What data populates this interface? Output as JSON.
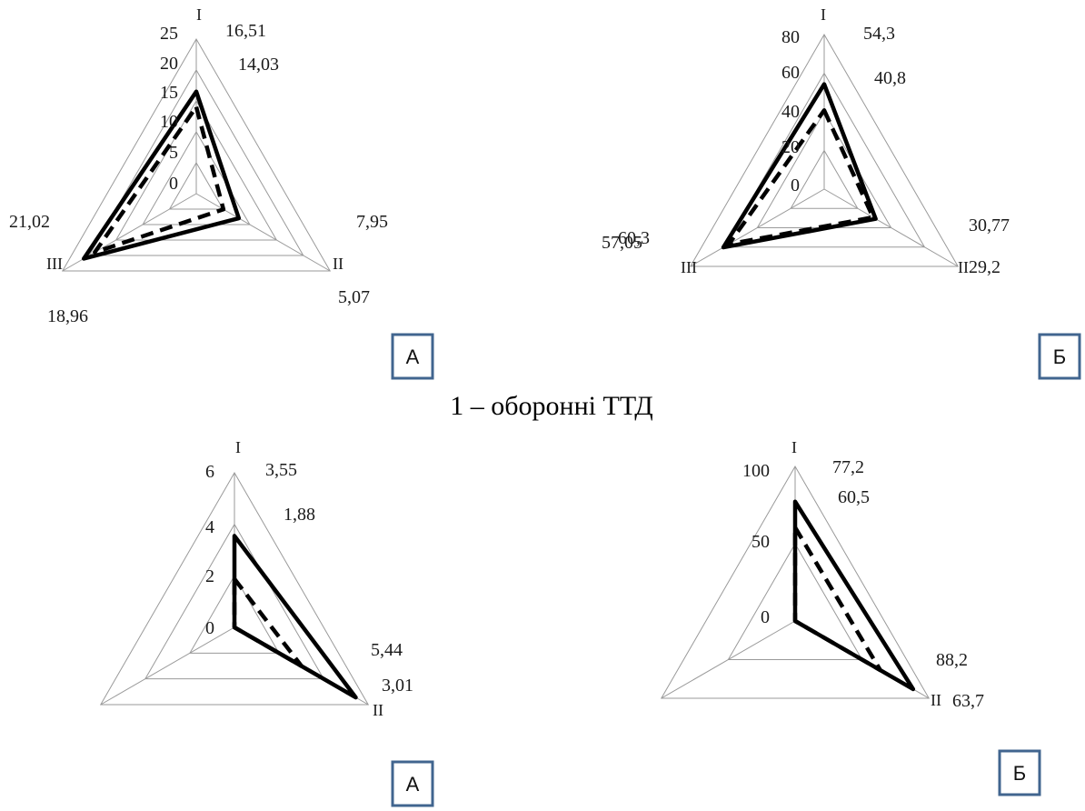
{
  "caption": "1 – оборонні ТТД",
  "colors": {
    "grid": "#9a9a9a",
    "series": "#000000",
    "panel_border": "#41658f"
  },
  "chart_data": [
    {
      "type": "radar",
      "panel_label": "А",
      "axes": [
        "I",
        "II",
        "III"
      ],
      "ylim": [
        0,
        25
      ],
      "ticks": [
        "0",
        "5",
        "10",
        "15",
        "20",
        "25"
      ],
      "grid": true,
      "series": [
        {
          "style": "solid",
          "values": [
            16.51,
            7.95,
            21.02
          ],
          "labels": [
            "16,51",
            "7,95",
            "21,02"
          ]
        },
        {
          "style": "dashed",
          "values": [
            14.03,
            5.07,
            18.96
          ],
          "labels": [
            "14,03",
            "5,07",
            "18,96"
          ]
        }
      ]
    },
    {
      "type": "radar",
      "panel_label": "Б",
      "axes": [
        "I",
        "II",
        "III"
      ],
      "ylim": [
        0,
        80
      ],
      "ticks": [
        "0",
        "20",
        "40",
        "60",
        "80"
      ],
      "grid": true,
      "series": [
        {
          "style": "solid",
          "values": [
            54.3,
            30.77,
            60.3
          ],
          "labels": [
            "54,3",
            "30,77",
            "60,3"
          ]
        },
        {
          "style": "dashed",
          "values": [
            40.8,
            29.2,
            57.05
          ],
          "labels": [
            "40,8",
            "29,2",
            "57,05"
          ]
        }
      ]
    },
    {
      "type": "radar",
      "panel_label": "А",
      "axes": [
        "I",
        "II",
        ""
      ],
      "ylim": [
        0,
        6
      ],
      "ticks": [
        "0",
        "2",
        "4",
        "6"
      ],
      "grid": true,
      "series": [
        {
          "style": "solid",
          "values": [
            3.55,
            5.44,
            0
          ],
          "labels": [
            "3,55",
            "5,44",
            ""
          ]
        },
        {
          "style": "dashed",
          "values": [
            1.88,
            3.01,
            0
          ],
          "labels": [
            "1,88",
            "3,01",
            ""
          ]
        }
      ]
    },
    {
      "type": "radar",
      "panel_label": "Б",
      "axes": [
        "I",
        "II",
        ""
      ],
      "ylim": [
        0,
        100
      ],
      "ticks": [
        "0",
        "50",
        "100"
      ],
      "grid": true,
      "series": [
        {
          "style": "solid",
          "values": [
            77.2,
            88.2,
            0
          ],
          "labels": [
            "77,2",
            "88,2",
            ""
          ]
        },
        {
          "style": "dashed",
          "values": [
            60.5,
            63.7,
            0
          ],
          "labels": [
            "60,5",
            "63,7",
            ""
          ]
        }
      ]
    }
  ]
}
